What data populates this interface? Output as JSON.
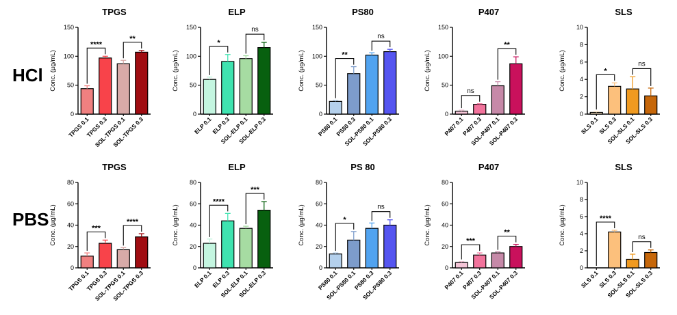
{
  "row_labels": [
    "HCl",
    "PBS"
  ],
  "chart_data": [
    {
      "type": "bar",
      "row": 0,
      "title": "TPGS",
      "ylabel": "Conc. (µg/mL)",
      "ylim": [
        0,
        150
      ],
      "yticks": [
        0,
        50,
        100,
        150
      ],
      "categories": [
        "TPGS 0.1",
        "TPGS 0.3",
        "SOL-TPGS 0.1",
        "SOL-TPGS 0.3"
      ],
      "values": [
        44,
        97,
        87,
        107
      ],
      "errors": [
        5,
        3,
        6,
        3
      ],
      "colors": [
        "#f08080",
        "#f8434a",
        "#d8aaa8",
        "#a00d12"
      ],
      "comparisons": [
        {
          "pair": [
            0,
            1
          ],
          "label": "****"
        },
        {
          "pair": [
            2,
            3
          ],
          "label": "**"
        }
      ]
    },
    {
      "type": "bar",
      "row": 0,
      "title": "ELP",
      "ylabel": "Conc. (µg/mL)",
      "ylim": [
        0,
        150
      ],
      "yticks": [
        0,
        50,
        100,
        150
      ],
      "categories": [
        "ELP 0.1",
        "ELP 0.3",
        "SOL-ELP 0.1",
        "SOL-ELP 0.3"
      ],
      "values": [
        60,
        91,
        96,
        115
      ],
      "errors": [
        4,
        12,
        5,
        9
      ],
      "colors": [
        "#c4f5e0",
        "#3fe3b0",
        "#a6dca2",
        "#08600f"
      ],
      "comparisons": [
        {
          "pair": [
            0,
            1
          ],
          "label": "*"
        },
        {
          "pair": [
            2,
            3
          ],
          "label": "ns"
        }
      ]
    },
    {
      "type": "bar",
      "row": 0,
      "title": "PS80",
      "ylabel": "Conc. (µg/mL)",
      "ylim": [
        0,
        150
      ],
      "yticks": [
        0,
        50,
        100,
        150
      ],
      "categories": [
        "PS80 0.1",
        "PS80 0.3",
        "SOL-PS80 0.1",
        "SOL-PS80 0.3"
      ],
      "values": [
        22,
        70,
        102,
        108
      ],
      "errors": [
        2,
        12,
        4,
        4
      ],
      "colors": [
        "#b4d0ec",
        "#7d9ccb",
        "#51a3f0",
        "#5555f0"
      ],
      "comparisons": [
        {
          "pair": [
            0,
            1
          ],
          "label": "**"
        },
        {
          "pair": [
            2,
            3
          ],
          "label": "ns"
        }
      ]
    },
    {
      "type": "bar",
      "row": 0,
      "title": "P407",
      "ylabel": "Conc. (µg/mL)",
      "ylim": [
        0,
        150
      ],
      "yticks": [
        0,
        50,
        100,
        150
      ],
      "categories": [
        "P407 0.1",
        "P407 0.3",
        "SOL-P407 0.1",
        "SOL-P407 0.3"
      ],
      "values": [
        5,
        17,
        49,
        87
      ],
      "errors": [
        2,
        1,
        7,
        12
      ],
      "colors": [
        "#f4c4d6",
        "#f2739c",
        "#c689a8",
        "#c9115c"
      ],
      "comparisons": [
        {
          "pair": [
            0,
            1
          ],
          "label": "ns"
        },
        {
          "pair": [
            2,
            3
          ],
          "label": "**"
        }
      ]
    },
    {
      "type": "bar",
      "row": 0,
      "title": "SLS",
      "ylabel": "Conc. (µg/mL)",
      "ylim": [
        0,
        10
      ],
      "yticks": [
        0,
        2,
        4,
        6,
        8,
        10
      ],
      "categories": [
        "SLS 0.1",
        "SLS 0.3",
        "SOL-SLS 0.1",
        "SOL-SLS 0.3"
      ],
      "values": [
        0.2,
        3.2,
        2.9,
        2.1
      ],
      "errors": [
        0.1,
        0.4,
        1.4,
        0.9
      ],
      "colors": [
        "#fde5c5",
        "#fcc07c",
        "#f09a20",
        "#c6670a"
      ],
      "comparisons": [
        {
          "pair": [
            0,
            1
          ],
          "label": "*"
        },
        {
          "pair": [
            2,
            3
          ],
          "label": "ns"
        }
      ]
    },
    {
      "type": "bar",
      "row": 1,
      "title": "TPGS",
      "ylabel": "Conc. (µg/mL)",
      "ylim": [
        0,
        80
      ],
      "yticks": [
        0,
        20,
        40,
        60,
        80
      ],
      "categories": [
        "TPGS 0.1",
        "TPGS 0.3",
        "SOL-TPGS 0.1",
        "SOL-TPGS 0.3"
      ],
      "values": [
        11,
        23,
        17,
        29
      ],
      "errors": [
        3,
        3,
        2,
        3
      ],
      "colors": [
        "#f08080",
        "#f8434a",
        "#d8aaa8",
        "#a00d12"
      ],
      "comparisons": [
        {
          "pair": [
            0,
            1
          ],
          "label": "***"
        },
        {
          "pair": [
            2,
            3
          ],
          "label": "****"
        }
      ]
    },
    {
      "type": "bar",
      "row": 1,
      "title": "ELP",
      "ylabel": "Conc. (µg/mL)",
      "ylim": [
        0,
        80
      ],
      "yticks": [
        0,
        20,
        40,
        60,
        80
      ],
      "categories": [
        "ELP 0.1",
        "ELP 0.3",
        "SOL-ELP 0.1",
        "SOL-ELP 0.3"
      ],
      "values": [
        23,
        44,
        37,
        54
      ],
      "errors": [
        4,
        7,
        2,
        8
      ],
      "colors": [
        "#c4f5e0",
        "#3fe3b0",
        "#a6dca2",
        "#08600f"
      ],
      "comparisons": [
        {
          "pair": [
            0,
            1
          ],
          "label": "****"
        },
        {
          "pair": [
            2,
            3
          ],
          "label": "***"
        }
      ]
    },
    {
      "type": "bar",
      "row": 1,
      "title": "PS 80",
      "ylabel": "Conc. (µg/mL)",
      "ylim": [
        0,
        80
      ],
      "yticks": [
        0,
        20,
        40,
        60,
        80
      ],
      "categories": [
        "PS80 0.1",
        "SOL-PS80 0.1",
        "PS80 0.3",
        "SOL-PS80 0.3"
      ],
      "values": [
        13,
        26,
        37,
        40
      ],
      "errors": [
        1,
        8,
        5,
        5
      ],
      "colors": [
        "#b4d0ec",
        "#7d9ccb",
        "#51a3f0",
        "#5555f0"
      ],
      "comparisons": [
        {
          "pair": [
            0,
            1
          ],
          "label": "*"
        },
        {
          "pair": [
            2,
            3
          ],
          "label": "ns"
        }
      ]
    },
    {
      "type": "bar",
      "row": 1,
      "title": "P407",
      "ylabel": "Conc. (µg/mL)",
      "ylim": [
        0,
        80
      ],
      "yticks": [
        0,
        20,
        40,
        60,
        80
      ],
      "categories": [
        "P407 0.1",
        "P407 0.3",
        "SOL-P407 0.1",
        "SOL-P407 0.3"
      ],
      "values": [
        5,
        12,
        14,
        20
      ],
      "errors": [
        1,
        2,
        1,
        2
      ],
      "colors": [
        "#f4c4d6",
        "#f2739c",
        "#c689a8",
        "#c9115c"
      ],
      "comparisons": [
        {
          "pair": [
            0,
            1
          ],
          "label": "***"
        },
        {
          "pair": [
            2,
            3
          ],
          "label": "**"
        }
      ]
    },
    {
      "type": "bar",
      "row": 1,
      "title": "SLS",
      "ylabel": "Conc. (µg/mL)",
      "ylim": [
        0,
        10
      ],
      "yticks": [
        0,
        2,
        4,
        6,
        8,
        10
      ],
      "categories": [
        "SLS 0.1",
        "SLS 0.3",
        "SOL-SLS 0.1",
        "SOL-SLS 0.3"
      ],
      "values": [
        0,
        4.2,
        1.0,
        1.8
      ],
      "errors": [
        0,
        0.2,
        0.6,
        0.3
      ],
      "colors": [
        "#fde5c5",
        "#fcc07c",
        "#f09a20",
        "#c6670a"
      ],
      "comparisons": [
        {
          "pair": [
            0,
            1
          ],
          "label": "****"
        },
        {
          "pair": [
            2,
            3
          ],
          "label": "ns"
        }
      ]
    }
  ]
}
